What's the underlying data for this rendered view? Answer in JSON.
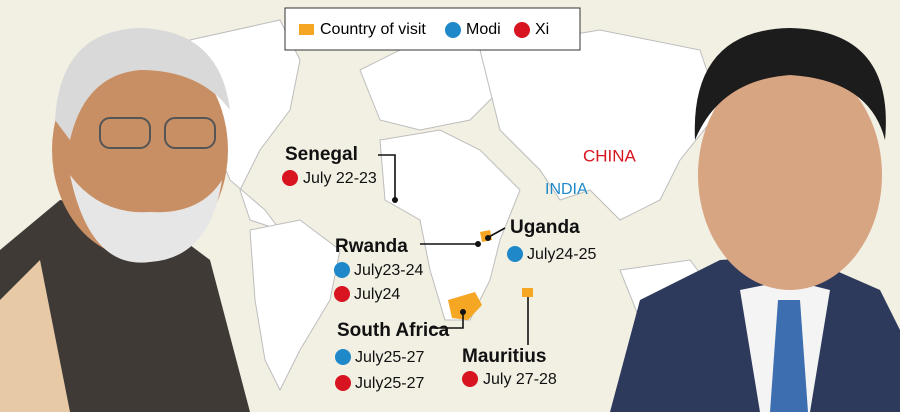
{
  "legend": {
    "visit": "Country of visit",
    "modi": "Modi",
    "xi": "Xi"
  },
  "countries": {
    "china": "CHINA",
    "india": "INDIA"
  },
  "visits": [
    {
      "name": "Senegal",
      "xi": "July 22-23"
    },
    {
      "name": "Uganda",
      "modi": "July24-25"
    },
    {
      "name": "Rwanda",
      "modi": "July23-24",
      "xi": "July24"
    },
    {
      "name": "South Africa",
      "modi": "July25-27",
      "xi": "July25-27"
    },
    {
      "name": "Mauritius",
      "xi": "July 27-28"
    }
  ]
}
